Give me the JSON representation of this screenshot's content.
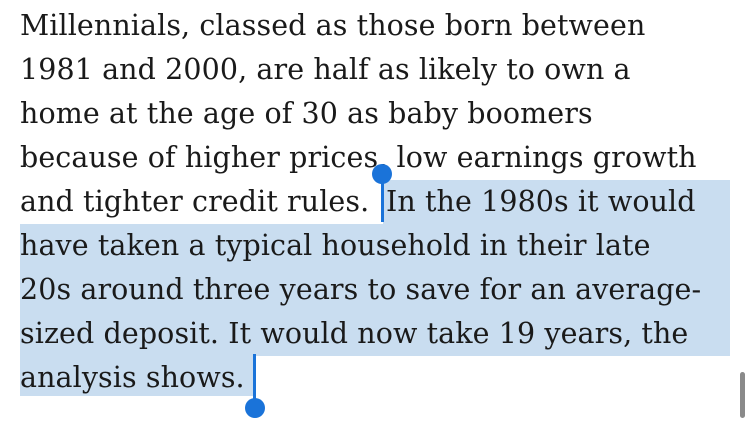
{
  "article": {
    "lines": [
      "Millennials, classed as those born between",
      "1981 and 2000, are half as likely to own a",
      "home at the age of 30 as baby boomers",
      "because of higher prices, low earnings growth",
      "and tighter credit rules. ",
      "In the 1980s it would",
      "have taken a typical household in their late",
      "20s around three years to save for an average-",
      "sized deposit. It would now take 19 years, the",
      "analysis shows."
    ]
  },
  "selection": {
    "color": "#c9ddf0",
    "handle_color": "#1a73d9"
  }
}
